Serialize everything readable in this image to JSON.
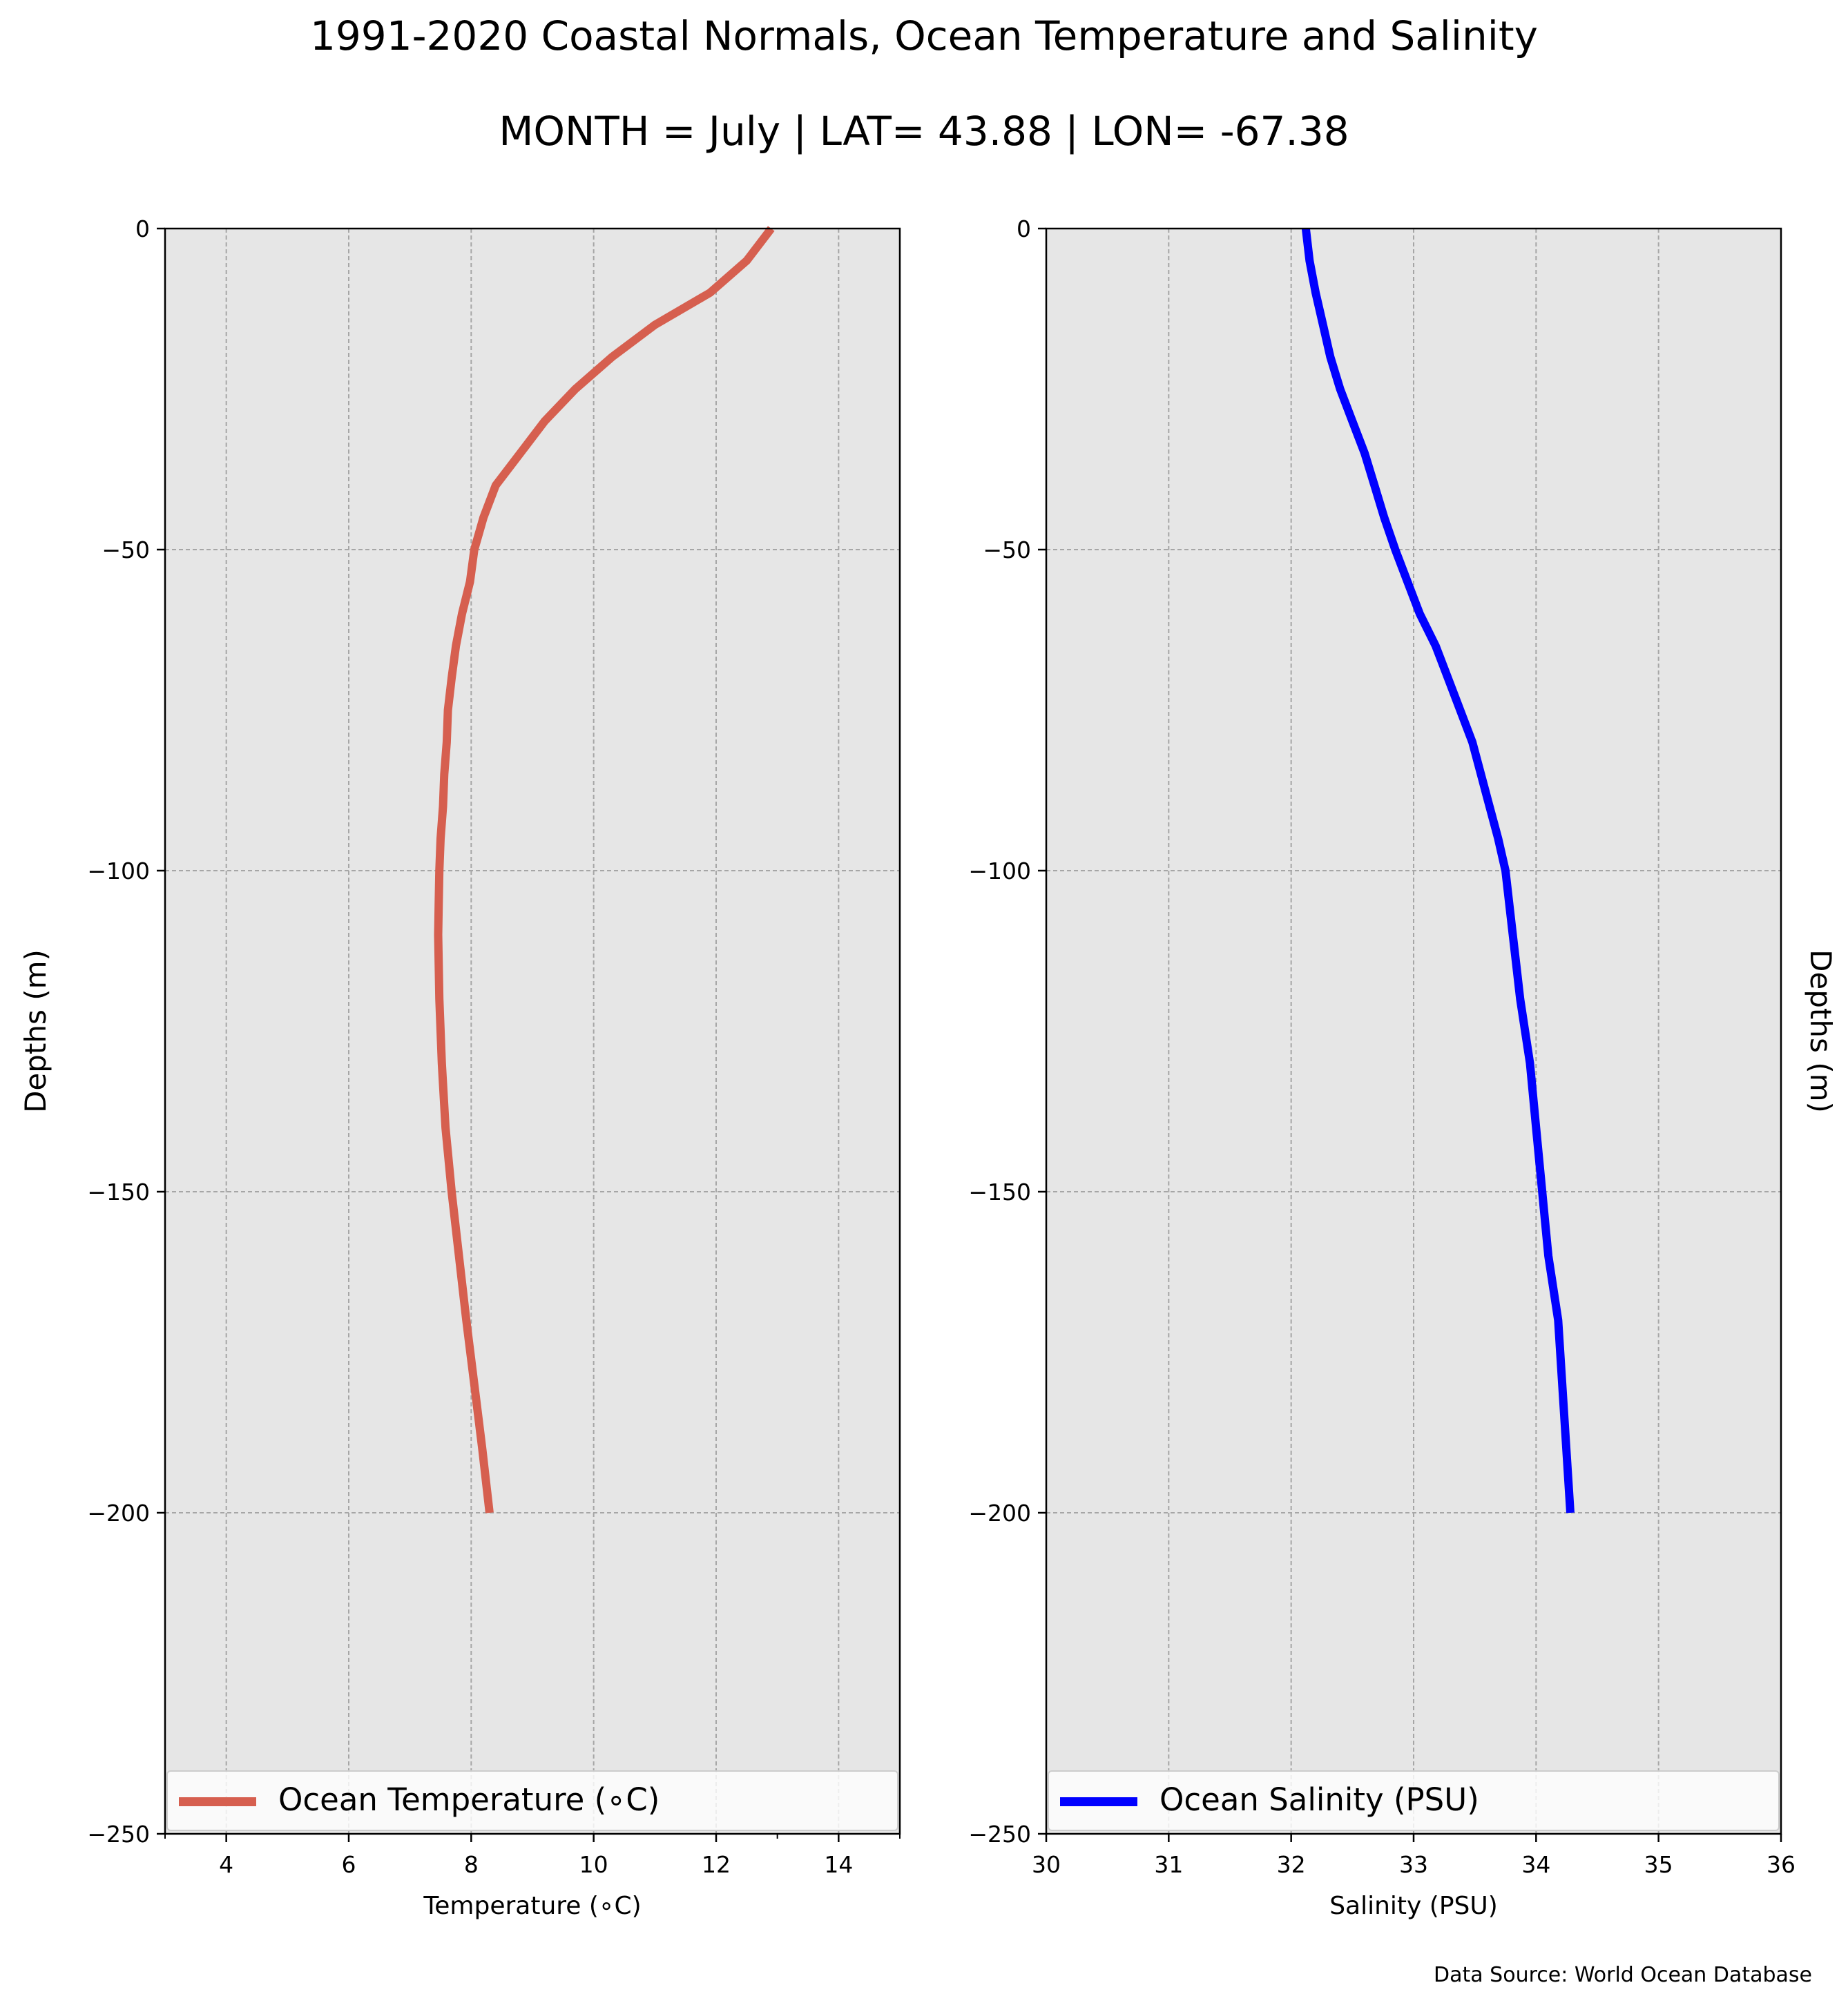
{
  "title": "1991-2020 Coastal Normals, Ocean Temperature and Salinity",
  "subtitle": "MONTH = July | LAT= 43.88 | LON= -67.38",
  "footer": {
    "source": "Data Source: World Ocean Database"
  },
  "colors": {
    "background": "#e6e6e6",
    "temperature": "#d65f4f",
    "salinity": "#0000ff",
    "grid": "#a6a6a6"
  },
  "chart_data": [
    {
      "type": "line",
      "xlabel": "Temperature (∘C)",
      "ylabel": "Depths (m)",
      "xlim": [
        3,
        15
      ],
      "ylim": [
        -250,
        0
      ],
      "xticks": [
        4,
        6,
        8,
        10,
        12,
        14
      ],
      "yticks": [
        0,
        -50,
        -100,
        -150,
        -200,
        -250
      ],
      "grid": true,
      "legend_position": "bottom",
      "series": [
        {
          "name": "Ocean Temperature (∘C)",
          "x": [
            12.9,
            12.5,
            11.9,
            11.0,
            10.3,
            9.7,
            9.2,
            8.8,
            8.4,
            8.2,
            8.05,
            7.98,
            7.85,
            7.75,
            7.68,
            7.62,
            7.6,
            7.56,
            7.54,
            7.5,
            7.48,
            7.47,
            7.46,
            7.48,
            7.52,
            7.58,
            7.68,
            7.8,
            7.92,
            8.05,
            8.18,
            8.3
          ],
          "y": [
            0,
            -5,
            -10,
            -15,
            -20,
            -25,
            -30,
            -35,
            -40,
            -45,
            -50,
            -55,
            -60,
            -65,
            -70,
            -75,
            -80,
            -85,
            -90,
            -95,
            -100,
            -105,
            -110,
            -120,
            -130,
            -140,
            -150,
            -160,
            -170,
            -180,
            -190,
            -200
          ]
        }
      ]
    },
    {
      "type": "line",
      "xlabel": "Salinity (PSU)",
      "ylabel": "Depths (m)",
      "xlim": [
        30,
        36
      ],
      "ylim": [
        -250,
        0
      ],
      "xticks": [
        30,
        31,
        32,
        33,
        34,
        35,
        36
      ],
      "yticks": [
        0,
        -50,
        -100,
        -150,
        -200,
        -250
      ],
      "grid": true,
      "legend_position": "bottom",
      "series": [
        {
          "name": "Ocean Salinity (PSU)",
          "x": [
            32.12,
            32.15,
            32.2,
            32.26,
            32.32,
            32.4,
            32.5,
            32.6,
            32.68,
            32.76,
            32.85,
            32.95,
            33.05,
            33.18,
            33.28,
            33.38,
            33.48,
            33.55,
            33.62,
            33.69,
            33.75,
            33.78,
            33.81,
            33.84,
            33.87,
            33.91,
            33.95,
            34.0,
            34.05,
            34.1,
            34.18,
            34.28
          ],
          "y": [
            0,
            -5,
            -10,
            -15,
            -20,
            -25,
            -30,
            -35,
            -40,
            -45,
            -50,
            -55,
            -60,
            -65,
            -70,
            -75,
            -80,
            -85,
            -90,
            -95,
            -100,
            -105,
            -110,
            -115,
            -120,
            -125,
            -130,
            -140,
            -150,
            -160,
            -170,
            -200
          ]
        }
      ]
    }
  ]
}
